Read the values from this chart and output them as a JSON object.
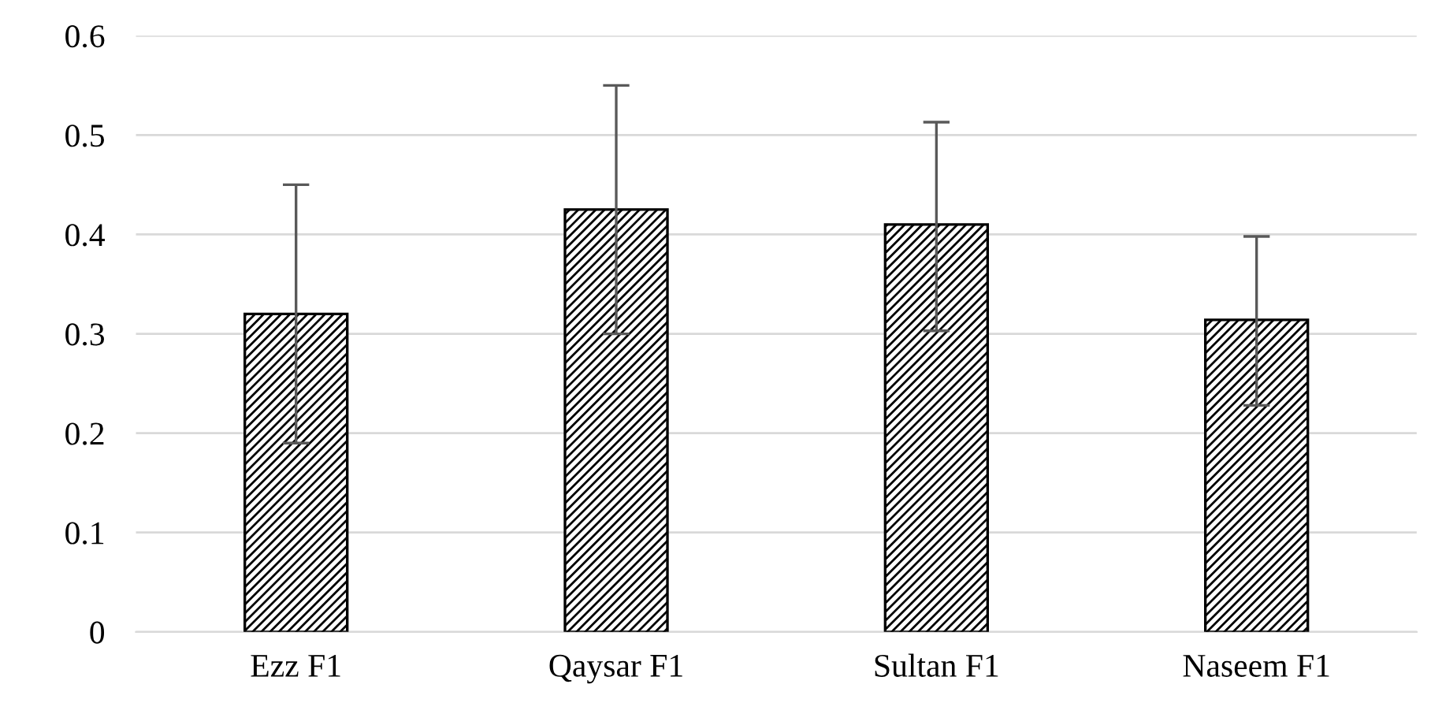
{
  "chart_data": {
    "type": "bar",
    "categories": [
      "Ezz F1",
      "Qaysar F1",
      "Sultan F1",
      "Naseem F1"
    ],
    "values": [
      0.32,
      0.425,
      0.41,
      0.314
    ],
    "errors": [
      [
        0.19,
        0.45
      ],
      [
        0.3,
        0.55
      ],
      [
        0.303,
        0.513
      ],
      [
        0.228,
        0.398
      ]
    ],
    "color": "#000000",
    "ylim": [
      0,
      0.6
    ],
    "yticks": [
      {
        "value": 0,
        "label": "0"
      },
      0.1,
      0.2,
      0.3,
      0.4,
      0.5,
      0.6
    ],
    "grid": "y",
    "legend": false
  }
}
